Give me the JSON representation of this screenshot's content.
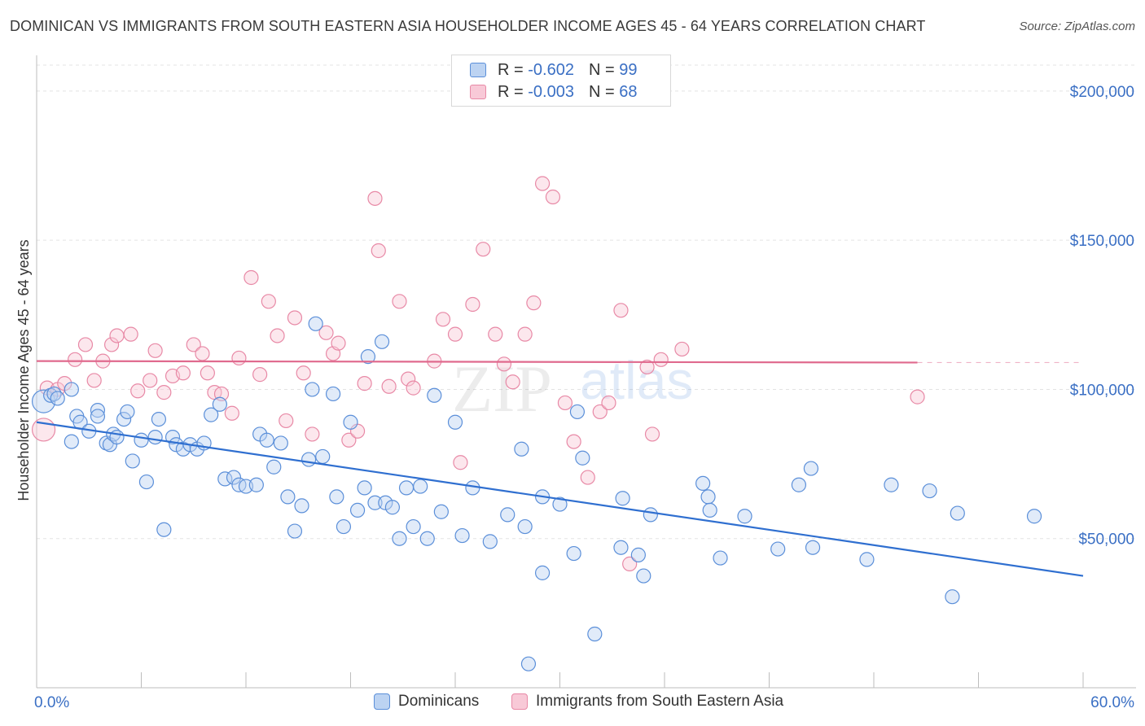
{
  "title": "DOMINICAN VS IMMIGRANTS FROM SOUTH EASTERN ASIA HOUSEHOLDER INCOME AGES 45 - 64 YEARS CORRELATION CHART",
  "source": "Source: ZipAtlas.com",
  "watermark": {
    "zip": "ZIP",
    "atlas": "atlas"
  },
  "legend_top": [
    {
      "r_label": "R =",
      "r_value": "-0.602",
      "n_label": "N =",
      "n_value": "99"
    },
    {
      "r_label": "R =",
      "r_value": "-0.003",
      "n_label": "N =",
      "n_value": "68"
    }
  ],
  "legend_bottom": [
    "Dominicans",
    "Immigrants from South Eastern Asia"
  ],
  "colors": {
    "blue": "#5b8fd9",
    "blue_fill": "#bcd3f2",
    "blue_line": "#2f6fd0",
    "pink": "#e889a6",
    "pink_fill": "#f8c9d7",
    "pink_line": "#e06a8e"
  },
  "chart_data": {
    "type": "scatter",
    "xlabel": "",
    "ylabel": "Householder Income Ages 45 - 64 years",
    "xlim": [
      0,
      60
    ],
    "ylim": [
      0,
      200000
    ],
    "x_tick_labels": [
      {
        "x": 0,
        "label": "0.0%"
      },
      {
        "x": 60,
        "label": "60.0%"
      }
    ],
    "y_tick_labels": [
      {
        "y": 50000,
        "label": "$50,000"
      },
      {
        "y": 100000,
        "label": "$100,000"
      },
      {
        "y": 150000,
        "label": "$150,000"
      },
      {
        "y": 200000,
        "label": "$200,000"
      }
    ],
    "series": [
      {
        "name": "Dominicans",
        "color": "blue",
        "trend": {
          "x": [
            0,
            60
          ],
          "y": [
            89000,
            37500
          ]
        },
        "points": [
          [
            0.4,
            96000
          ],
          [
            0.8,
            98000
          ],
          [
            1.0,
            98500
          ],
          [
            1.2,
            97000
          ],
          [
            2.0,
            100000
          ],
          [
            2.0,
            82500
          ],
          [
            2.3,
            91000
          ],
          [
            2.5,
            89000
          ],
          [
            3.0,
            86000
          ],
          [
            3.5,
            93000
          ],
          [
            3.5,
            91000
          ],
          [
            4.0,
            82000
          ],
          [
            4.2,
            81500
          ],
          [
            4.4,
            85000
          ],
          [
            4.6,
            84000
          ],
          [
            5.0,
            90000
          ],
          [
            5.2,
            92500
          ],
          [
            5.5,
            76000
          ],
          [
            6.0,
            83000
          ],
          [
            6.3,
            69000
          ],
          [
            6.8,
            84000
          ],
          [
            7.0,
            90000
          ],
          [
            7.3,
            53000
          ],
          [
            7.8,
            84000
          ],
          [
            8.0,
            81500
          ],
          [
            8.4,
            80000
          ],
          [
            8.8,
            81500
          ],
          [
            9.2,
            80000
          ],
          [
            9.6,
            82000
          ],
          [
            10.0,
            91500
          ],
          [
            10.5,
            95000
          ],
          [
            10.8,
            70000
          ],
          [
            11.3,
            70500
          ],
          [
            11.6,
            68000
          ],
          [
            12.0,
            67500
          ],
          [
            12.6,
            68000
          ],
          [
            12.8,
            85000
          ],
          [
            13.2,
            83000
          ],
          [
            13.6,
            74000
          ],
          [
            14.0,
            82000
          ],
          [
            14.4,
            64000
          ],
          [
            14.8,
            52500
          ],
          [
            15.2,
            61000
          ],
          [
            15.6,
            76500
          ],
          [
            15.8,
            100000
          ],
          [
            16.0,
            122000
          ],
          [
            16.4,
            77500
          ],
          [
            17.0,
            98500
          ],
          [
            17.2,
            64000
          ],
          [
            17.6,
            54000
          ],
          [
            18.0,
            89000
          ],
          [
            18.4,
            59500
          ],
          [
            18.8,
            67000
          ],
          [
            19.0,
            111000
          ],
          [
            19.4,
            62000
          ],
          [
            19.8,
            116000
          ],
          [
            20.0,
            62000
          ],
          [
            20.4,
            60500
          ],
          [
            20.8,
            50000
          ],
          [
            21.2,
            67000
          ],
          [
            21.6,
            54000
          ],
          [
            22.0,
            67500
          ],
          [
            22.4,
            50000
          ],
          [
            22.8,
            98000
          ],
          [
            23.2,
            59000
          ],
          [
            24.0,
            89000
          ],
          [
            24.4,
            51000
          ],
          [
            25.0,
            67000
          ],
          [
            26.0,
            49000
          ],
          [
            27.0,
            58000
          ],
          [
            27.8,
            80000
          ],
          [
            28.0,
            54000
          ],
          [
            29.0,
            64000
          ],
          [
            29.0,
            38500
          ],
          [
            30.0,
            61500
          ],
          [
            30.8,
            45000
          ],
          [
            31.0,
            92500
          ],
          [
            31.3,
            77000
          ],
          [
            32.0,
            18000
          ],
          [
            33.5,
            47000
          ],
          [
            33.6,
            63500
          ],
          [
            34.5,
            44500
          ],
          [
            34.8,
            37500
          ],
          [
            35.2,
            58000
          ],
          [
            38.2,
            68500
          ],
          [
            38.5,
            64000
          ],
          [
            38.6,
            59500
          ],
          [
            39.2,
            43500
          ],
          [
            40.6,
            57500
          ],
          [
            42.5,
            46500
          ],
          [
            43.7,
            68000
          ],
          [
            44.4,
            73500
          ],
          [
            44.5,
            47000
          ],
          [
            47.6,
            43000
          ],
          [
            49.0,
            68000
          ],
          [
            51.2,
            66000
          ],
          [
            52.5,
            30500
          ],
          [
            52.8,
            58500
          ],
          [
            57.2,
            57500
          ],
          [
            28.2,
            8000
          ]
        ]
      },
      {
        "name": "Immigrants from South Eastern Asia",
        "color": "pink",
        "trend": {
          "x": [
            0,
            50.5
          ],
          "y": [
            109500,
            109000
          ]
        },
        "points": [
          [
            0.4,
            86500
          ],
          [
            0.6,
            100500
          ],
          [
            1.2,
            100000
          ],
          [
            1.6,
            102000
          ],
          [
            2.2,
            110000
          ],
          [
            2.8,
            115000
          ],
          [
            3.3,
            103000
          ],
          [
            3.8,
            109500
          ],
          [
            4.3,
            115000
          ],
          [
            4.6,
            118000
          ],
          [
            5.4,
            118500
          ],
          [
            5.8,
            99500
          ],
          [
            6.5,
            103000
          ],
          [
            6.8,
            113000
          ],
          [
            7.3,
            99000
          ],
          [
            7.8,
            104500
          ],
          [
            8.4,
            105500
          ],
          [
            9.0,
            115000
          ],
          [
            9.5,
            112000
          ],
          [
            9.8,
            105500
          ],
          [
            10.2,
            99000
          ],
          [
            10.6,
            98500
          ],
          [
            11.2,
            92000
          ],
          [
            11.6,
            110500
          ],
          [
            12.3,
            137500
          ],
          [
            12.8,
            105000
          ],
          [
            13.3,
            129500
          ],
          [
            13.8,
            118000
          ],
          [
            14.3,
            89500
          ],
          [
            14.8,
            124000
          ],
          [
            15.3,
            105500
          ],
          [
            15.8,
            85000
          ],
          [
            16.6,
            119000
          ],
          [
            17.0,
            112000
          ],
          [
            17.3,
            115500
          ],
          [
            17.9,
            83000
          ],
          [
            18.4,
            86000
          ],
          [
            18.8,
            102000
          ],
          [
            19.4,
            164000
          ],
          [
            19.6,
            146500
          ],
          [
            20.2,
            101000
          ],
          [
            20.8,
            129500
          ],
          [
            21.3,
            103500
          ],
          [
            21.6,
            100500
          ],
          [
            22.8,
            109500
          ],
          [
            23.3,
            123500
          ],
          [
            24.0,
            118500
          ],
          [
            24.3,
            75500
          ],
          [
            25.0,
            128500
          ],
          [
            25.6,
            147000
          ],
          [
            26.3,
            118500
          ],
          [
            26.8,
            108500
          ],
          [
            27.3,
            102500
          ],
          [
            28.0,
            118500
          ],
          [
            28.5,
            129000
          ],
          [
            29.0,
            169000
          ],
          [
            29.6,
            164500
          ],
          [
            30.3,
            95500
          ],
          [
            30.8,
            82500
          ],
          [
            31.6,
            70500
          ],
          [
            32.3,
            92500
          ],
          [
            32.8,
            95500
          ],
          [
            33.5,
            126500
          ],
          [
            34.0,
            41500
          ],
          [
            35.0,
            107500
          ],
          [
            35.3,
            85000
          ],
          [
            35.8,
            110000
          ],
          [
            37.0,
            113500
          ],
          [
            50.5,
            97500
          ]
        ]
      }
    ]
  }
}
